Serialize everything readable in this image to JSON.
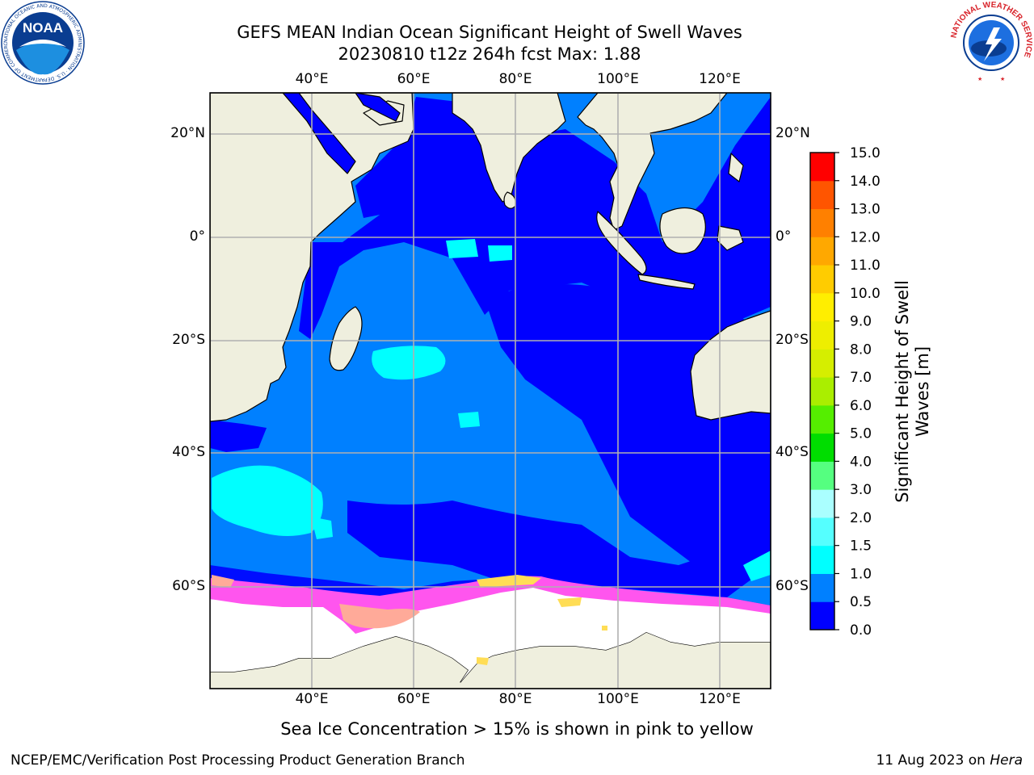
{
  "header": {
    "title_line1": "GEFS MEAN Indian Ocean Significant Height of Swell Waves",
    "title_line2": "20230810 t12z 264h fcst   Max: 1.88"
  },
  "logos": {
    "noaa": {
      "text": "NOAA",
      "ring_text": "NATIONAL OCEANIC AND ATMOSPHERIC ADMINISTRATION · U.S. DEPARTMENT OF COMMERCE",
      "color": "#0a3d91"
    },
    "nws": {
      "ring_text": "NATIONAL WEATHER SERVICE",
      "color": "#d8232a"
    }
  },
  "map": {
    "top_lon_labels": [
      "40°E",
      "60°E",
      "80°E",
      "100°E",
      "120°E"
    ],
    "bottom_lon_labels": [
      "40°E",
      "60°E",
      "80°E",
      "100°E",
      "120°E"
    ],
    "left_lat_labels": [
      "20°N",
      "0°",
      "20°S",
      "40°S",
      "60°S"
    ],
    "right_lat_labels": [
      "20°N",
      "0°",
      "20°S",
      "40°S",
      "60°S"
    ],
    "lon_range": [
      20,
      130
    ],
    "lat_range": [
      -72,
      28
    ],
    "projection": "mercator",
    "grid": true,
    "colors": {
      "land": "#efefde",
      "coastline": "#000000",
      "grid": "#b0b0b0",
      "ice": "#ffffff"
    }
  },
  "colorbar": {
    "label_line1": "Significant Height of Swell",
    "label_line2": "Waves [m]",
    "ticks": [
      "15.0",
      "14.0",
      "13.0",
      "12.0",
      "11.0",
      "10.0",
      "9.0",
      "8.0",
      "7.0",
      "6.0",
      "5.0",
      "4.0",
      "3.0",
      "2.0",
      "1.5",
      "1.0",
      "0.5",
      "0.0"
    ],
    "bins": [
      {
        "from": 0.0,
        "to": 0.5,
        "color": "#0000ff"
      },
      {
        "from": 0.5,
        "to": 1.0,
        "color": "#0080ff"
      },
      {
        "from": 1.0,
        "to": 1.5,
        "color": "#00ffff"
      },
      {
        "from": 1.5,
        "to": 2.0,
        "color": "#55ffff"
      },
      {
        "from": 2.0,
        "to": 3.0,
        "color": "#aaffff"
      },
      {
        "from": 3.0,
        "to": 4.0,
        "color": "#55ff80"
      },
      {
        "from": 4.0,
        "to": 5.0,
        "color": "#00dd00"
      },
      {
        "from": 5.0,
        "to": 6.0,
        "color": "#55ee00"
      },
      {
        "from": 6.0,
        "to": 7.0,
        "color": "#aaee00"
      },
      {
        "from": 7.0,
        "to": 8.0,
        "color": "#d5ee00"
      },
      {
        "from": 8.0,
        "to": 9.0,
        "color": "#eeee00"
      },
      {
        "from": 9.0,
        "to": 10.0,
        "color": "#ffee00"
      },
      {
        "from": 10.0,
        "to": 11.0,
        "color": "#ffcc00"
      },
      {
        "from": 11.0,
        "to": 12.0,
        "color": "#ffa800"
      },
      {
        "from": 12.0,
        "to": 13.0,
        "color": "#ff8000"
      },
      {
        "from": 13.0,
        "to": 14.0,
        "color": "#ff5500"
      },
      {
        "from": 14.0,
        "to": 15.0,
        "color": "#ff0000"
      }
    ],
    "ice_colors": [
      "#ff55ee",
      "#ffaa99",
      "#ffdd55"
    ]
  },
  "caption": "Sea Ice Concentration > 15% is shown in pink to yellow",
  "footer": {
    "left": "NCEP/EMC/Verification Post Processing Product Generation Branch",
    "right_prefix": "11 Aug 2023 on ",
    "right_machine": "Hera"
  }
}
